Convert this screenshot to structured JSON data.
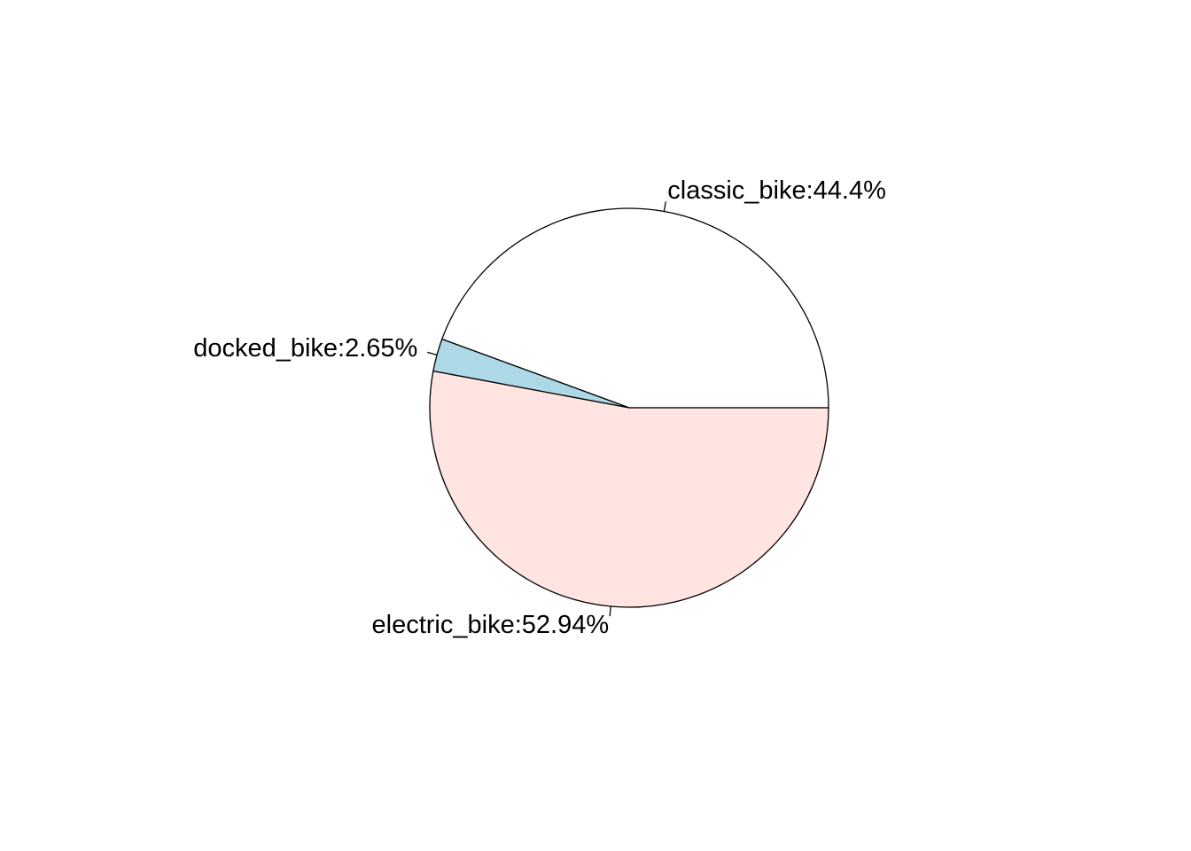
{
  "chart_data": {
    "type": "pie",
    "title": "",
    "labels": [
      "classic_bike:44.4%",
      "docked_bike:2.65%",
      "electric_bike:52.94%"
    ],
    "values": [
      44.4,
      2.65,
      52.94
    ],
    "colors": [
      "#ffffff",
      "#add8e6",
      "#ffe4e1"
    ],
    "start_angle": "0 degrees (3 o'clock)",
    "direction": "counterclockwise",
    "legend": "none"
  }
}
